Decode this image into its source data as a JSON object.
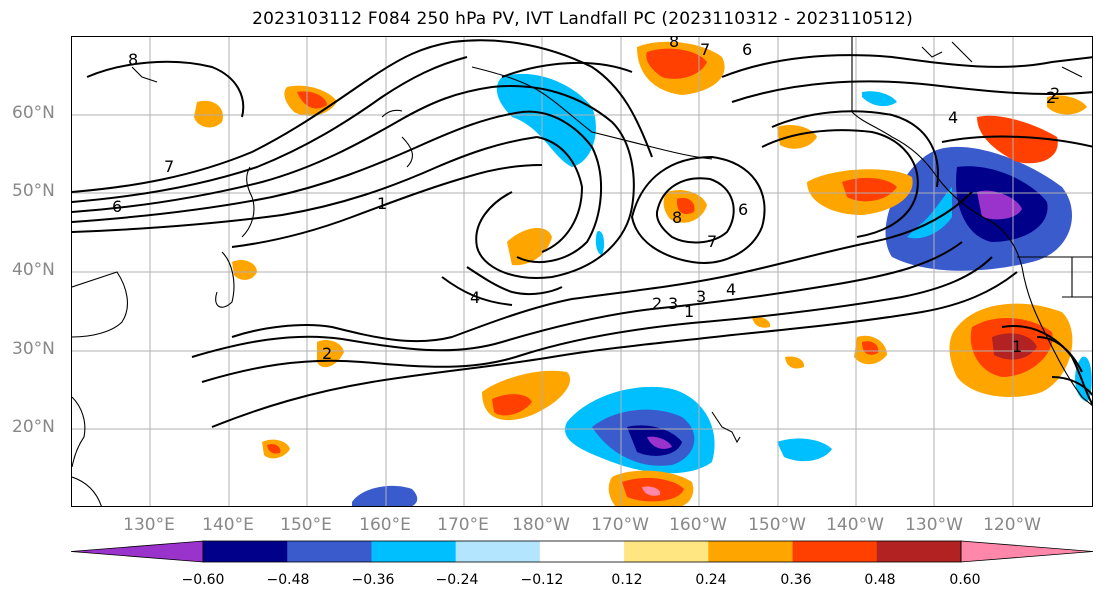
{
  "title": "2023103112 F084 250 hPa PV, IVT Landfall PC (2023110312 - 2023110512)",
  "lat_labels": [
    "60°N",
    "50°N",
    "40°N",
    "30°N",
    "20°N"
  ],
  "lon_labels": [
    "130°E",
    "140°E",
    "150°E",
    "160°E",
    "170°E",
    "180°W",
    "170°W",
    "160°W",
    "150°W",
    "140°W",
    "130°W",
    "120°W"
  ],
  "colorbar": {
    "ticks": [
      "−0.60",
      "−0.48",
      "−0.36",
      "−0.24",
      "−0.12",
      "0.12",
      "0.24",
      "0.36",
      "0.48",
      "0.60"
    ],
    "colors": [
      "#9933cc",
      "#00008b",
      "#3a5bcc",
      "#00bfff",
      "#b3e5ff",
      "#ffffff",
      "#ffe680",
      "#ffa500",
      "#ff4000",
      "#b22222",
      "#ff88aa"
    ]
  },
  "contour_labels": [
    "8",
    "7",
    "6",
    "1",
    "2",
    "3",
    "4",
    "8",
    "6",
    "7",
    "4",
    "3",
    "2",
    "1",
    "2",
    "6",
    "7",
    "8",
    "4",
    "2",
    "1"
  ]
}
